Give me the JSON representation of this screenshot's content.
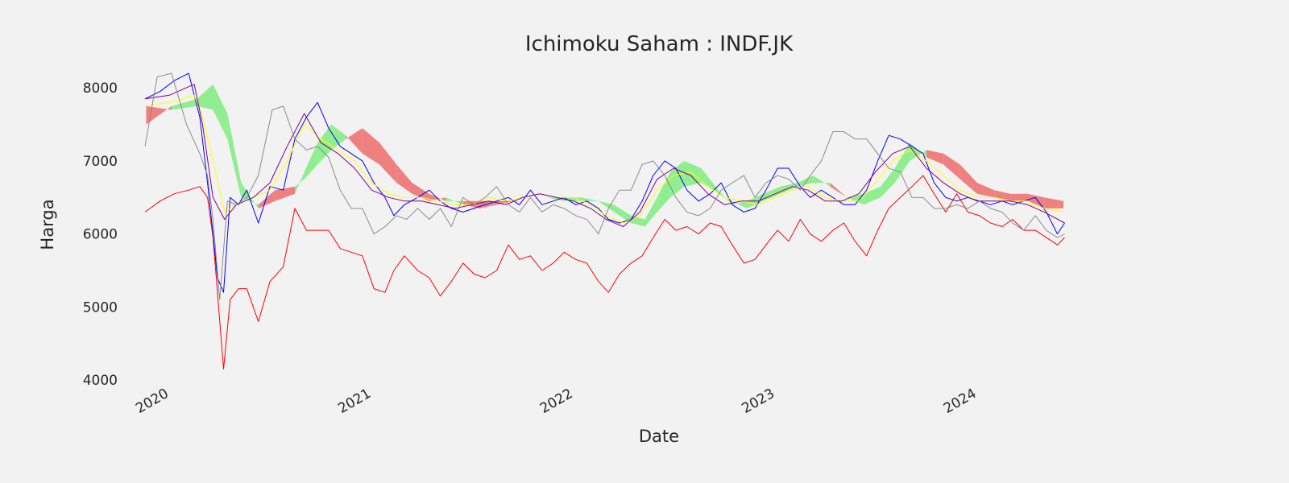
{
  "chart_data": {
    "type": "line",
    "title": "Ichimoku Saham : INDF.JK",
    "xlabel": "Date",
    "ylabel": "Harga",
    "xlim": [
      "2019-11-18",
      "2024-12-20"
    ],
    "ylim": [
      4000,
      8300
    ],
    "x_ticks": [
      "2020-01-01",
      "2021-01-01",
      "2022-01-01",
      "2023-01-01",
      "2024-01-01"
    ],
    "x_tick_labels": [
      "2020",
      "2021",
      "2022",
      "2023",
      "2024"
    ],
    "y_ticks": [
      4000,
      5000,
      6000,
      7000,
      8000
    ],
    "y_tick_labels": [
      "4000",
      "5000",
      "6000",
      "7000",
      "8000"
    ],
    "grid": false,
    "legend": false,
    "cloud": {
      "x": [
        "2019-11-20",
        "2020-01-05",
        "2020-02-20",
        "2020-03-20",
        "2020-04-15",
        "2020-05-10",
        "2020-06-10",
        "2020-07-10",
        "2020-08-15",
        "2020-09-01",
        "2020-09-25",
        "2020-10-20",
        "2020-11-15",
        "2020-12-15",
        "2021-01-15",
        "2021-02-15",
        "2021-03-15",
        "2021-04-15",
        "2021-05-15",
        "2021-06-15",
        "2021-07-15",
        "2021-08-15",
        "2021-09-15",
        "2021-10-15",
        "2021-11-15",
        "2021-12-15",
        "2022-01-15",
        "2022-02-15",
        "2022-03-15",
        "2022-04-15",
        "2022-05-10",
        "2022-06-01",
        "2022-06-25",
        "2022-07-20",
        "2022-08-20",
        "2022-09-20",
        "2022-10-15",
        "2022-11-10",
        "2022-12-10",
        "2023-01-10",
        "2023-02-10",
        "2023-03-10",
        "2023-04-10",
        "2023-05-10",
        "2023-06-10",
        "2023-07-10",
        "2023-08-05",
        "2023-09-01",
        "2023-10-01",
        "2023-11-01",
        "2023-12-01",
        "2024-01-01",
        "2024-02-01",
        "2024-03-01",
        "2024-04-01",
        "2024-05-01",
        "2024-06-05"
      ],
      "span_a": [
        7500,
        7750,
        7850,
        8050,
        7650,
        6700,
        6350,
        6450,
        6550,
        6850,
        7250,
        7500,
        7350,
        7100,
        6950,
        6700,
        6550,
        6450,
        6500,
        6400,
        6350,
        6400,
        6450,
        6450,
        6500,
        6500,
        6500,
        6450,
        6400,
        6250,
        6200,
        6500,
        6850,
        7000,
        6900,
        6600,
        6400,
        6450,
        6550,
        6650,
        6700,
        6800,
        6650,
        6500,
        6550,
        6650,
        6900,
        7250,
        7050,
        6950,
        6750,
        6550,
        6500,
        6450,
        6450,
        6350,
        6350
      ],
      "span_b": [
        7750,
        7700,
        7750,
        7700,
        7300,
        6500,
        6400,
        6600,
        6650,
        6750,
        6950,
        7150,
        7300,
        7450,
        7250,
        6950,
        6700,
        6550,
        6450,
        6450,
        6450,
        6450,
        6450,
        6450,
        6500,
        6450,
        6450,
        6450,
        6300,
        6150,
        6100,
        6300,
        6500,
        6650,
        6700,
        6550,
        6450,
        6350,
        6450,
        6550,
        6650,
        6700,
        6700,
        6500,
        6400,
        6500,
        6700,
        7000,
        7150,
        7100,
        6950,
        6700,
        6600,
        6550,
        6550,
        6500,
        6450
      ]
    },
    "series": [
      {
        "x": [
          "2019-11-18",
          "2019-12-15",
          "2020-01-10",
          "2020-02-05",
          "2020-02-25",
          "2020-03-10",
          "2020-03-20",
          "2020-03-28",
          "2020-04-08",
          "2020-04-20",
          "2020-05-05",
          "2020-05-20",
          "2020-06-10",
          "2020-07-01",
          "2020-07-25",
          "2020-08-15",
          "2020-09-05",
          "2020-09-25",
          "2020-10-15",
          "2020-11-05",
          "2020-11-25",
          "2020-12-15",
          "2021-01-05",
          "2021-01-25",
          "2021-02-10",
          "2021-03-01",
          "2021-03-25",
          "2021-04-15",
          "2021-05-05",
          "2021-05-25",
          "2021-06-15",
          "2021-07-05",
          "2021-07-25",
          "2021-08-15",
          "2021-09-05",
          "2021-09-25",
          "2021-10-15",
          "2021-11-05",
          "2021-11-25",
          "2021-12-15",
          "2022-01-05",
          "2022-01-25",
          "2022-02-15",
          "2022-03-05",
          "2022-03-25",
          "2022-04-15",
          "2022-05-05",
          "2022-05-25",
          "2022-06-15",
          "2022-07-05",
          "2022-07-25",
          "2022-08-15",
          "2022-09-05",
          "2022-09-25",
          "2022-10-15",
          "2022-11-05",
          "2022-11-25",
          "2022-12-15",
          "2023-01-05",
          "2023-01-25",
          "2023-02-15",
          "2023-03-05",
          "2023-03-25",
          "2023-04-15",
          "2023-05-05",
          "2023-05-25",
          "2023-06-15",
          "2023-07-05",
          "2023-07-25",
          "2023-08-15",
          "2023-09-05",
          "2023-09-25",
          "2023-10-15",
          "2023-11-05",
          "2023-11-25",
          "2023-12-15",
          "2024-01-05",
          "2024-01-25",
          "2024-02-15",
          "2024-03-05",
          "2024-03-25",
          "2024-04-15",
          "2024-05-05",
          "2024-05-25",
          "2024-06-07"
        ],
        "values": [
          6300,
          6450,
          6550,
          6600,
          6650,
          6500,
          5950,
          5200,
          4150,
          5100,
          5250,
          5250,
          4800,
          5350,
          5550,
          6350,
          6050,
          6050,
          6050,
          5800,
          5750,
          5700,
          5250,
          5200,
          5500,
          5700,
          5500,
          5400,
          5150,
          5350,
          5600,
          5450,
          5400,
          5500,
          5850,
          5650,
          5700,
          5500,
          5600,
          5750,
          5650,
          5600,
          5350,
          5200,
          5450,
          5600,
          5700,
          5950,
          6200,
          6050,
          6100,
          6000,
          6150,
          6100,
          5850,
          5600,
          5650,
          5850,
          6050,
          5900,
          6200,
          6000,
          5900,
          6050,
          6150,
          5900,
          5700,
          6050,
          6350,
          6500,
          6650,
          6800,
          6550,
          6300,
          6550,
          6300,
          6250,
          6150,
          6100,
          6200,
          6050,
          6050,
          5950,
          5850,
          5950
        ]
      },
      {
        "x": [
          "2019-11-18",
          "2019-12-15",
          "2020-01-10",
          "2020-02-05",
          "2020-02-25",
          "2020-03-10",
          "2020-03-20",
          "2020-03-28",
          "2020-04-08",
          "2020-04-20",
          "2020-05-05",
          "2020-05-20",
          "2020-06-10",
          "2020-07-01",
          "2020-07-25",
          "2020-08-15",
          "2020-09-05",
          "2020-09-25",
          "2020-10-15",
          "2020-11-05",
          "2020-11-25",
          "2020-12-15",
          "2021-01-05",
          "2021-01-25",
          "2021-02-10",
          "2021-03-01",
          "2021-03-25",
          "2021-04-15",
          "2021-05-05",
          "2021-05-25",
          "2021-06-15",
          "2021-07-05",
          "2021-07-25",
          "2021-08-15",
          "2021-09-05",
          "2021-09-25",
          "2021-10-15",
          "2021-11-05",
          "2021-11-25",
          "2021-12-15",
          "2022-01-05",
          "2022-01-25",
          "2022-02-15",
          "2022-03-05",
          "2022-03-25",
          "2022-04-15",
          "2022-05-05",
          "2022-05-25",
          "2022-06-15",
          "2022-07-05",
          "2022-07-25",
          "2022-08-15",
          "2022-09-05",
          "2022-09-25",
          "2022-10-15",
          "2022-11-05",
          "2022-11-25",
          "2022-12-15",
          "2023-01-05",
          "2023-01-25",
          "2023-02-15",
          "2023-03-05",
          "2023-03-25",
          "2023-04-15",
          "2023-05-05",
          "2023-05-25",
          "2023-06-15",
          "2023-07-05",
          "2023-07-25",
          "2023-08-15",
          "2023-09-05",
          "2023-09-25",
          "2023-10-15",
          "2023-11-05",
          "2023-11-25",
          "2023-12-15",
          "2024-01-05",
          "2024-01-25",
          "2024-02-15",
          "2024-03-05",
          "2024-03-25",
          "2024-04-15",
          "2024-05-05",
          "2024-05-25",
          "2024-06-07"
        ],
        "values": [
          7850,
          7950,
          8100,
          8200,
          7600,
          6700,
          6000,
          5400,
          5200,
          6500,
          6400,
          6600,
          6150,
          6650,
          6600,
          7300,
          7600,
          7800,
          7450,
          7200,
          7100,
          7000,
          6700,
          6500,
          6250,
          6400,
          6500,
          6600,
          6450,
          6350,
          6300,
          6350,
          6400,
          6450,
          6500,
          6400,
          6600,
          6400,
          6450,
          6500,
          6400,
          6450,
          6350,
          6200,
          6150,
          6200,
          6450,
          6800,
          7000,
          6900,
          6600,
          6450,
          6550,
          6700,
          6400,
          6300,
          6350,
          6600,
          6900,
          6900,
          6650,
          6500,
          6600,
          6500,
          6400,
          6400,
          6600,
          7000,
          7350,
          7300,
          7200,
          7100,
          6700,
          6500,
          6450,
          6500,
          6450,
          6400,
          6450,
          6400,
          6450,
          6500,
          6300,
          6000,
          6150
        ]
      },
      {
        "x": [
          "2019-11-18",
          "2020-01-01",
          "2020-02-15",
          "2020-03-01",
          "2020-03-20",
          "2020-04-10",
          "2020-05-01",
          "2020-06-01",
          "2020-07-01",
          "2020-08-01",
          "2020-09-01",
          "2020-10-01",
          "2020-11-01",
          "2020-12-01",
          "2021-01-01",
          "2021-02-01",
          "2021-03-01",
          "2021-04-01",
          "2021-05-01",
          "2021-06-01",
          "2021-07-01",
          "2021-08-01",
          "2021-09-01",
          "2021-10-01",
          "2021-11-01",
          "2021-12-01",
          "2022-01-01",
          "2022-02-01",
          "2022-03-01",
          "2022-04-01",
          "2022-05-01",
          "2022-06-01",
          "2022-07-01",
          "2022-08-01",
          "2022-09-01",
          "2022-10-01",
          "2022-11-01",
          "2022-12-01",
          "2023-01-01",
          "2023-02-01",
          "2023-03-01",
          "2023-04-01",
          "2023-05-01",
          "2023-06-01",
          "2023-07-01",
          "2023-08-01",
          "2023-09-01",
          "2023-10-01",
          "2023-11-01",
          "2023-12-01",
          "2024-01-01",
          "2024-02-01",
          "2024-03-01",
          "2024-04-01",
          "2024-05-01",
          "2024-06-07"
        ],
        "values": [
          7750,
          7800,
          7900,
          7600,
          7000,
          6300,
          6400,
          6500,
          6600,
          7000,
          7500,
          7300,
          7150,
          7000,
          6700,
          6550,
          6500,
          6500,
          6450,
          6400,
          6400,
          6500,
          6450,
          6500,
          6550,
          6500,
          6500,
          6400,
          6250,
          6150,
          6250,
          6600,
          6800,
          6850,
          6650,
          6500,
          6450,
          6400,
          6500,
          6600,
          6650,
          6500,
          6450,
          6450,
          6700,
          7000,
          7150,
          7000,
          6800,
          6600,
          6500,
          6500,
          6450,
          6450,
          6350,
          6300
        ]
      },
      {
        "x": [
          "2019-11-18",
          "2020-01-01",
          "2020-02-15",
          "2020-03-01",
          "2020-03-20",
          "2020-04-10",
          "2020-05-01",
          "2020-06-01",
          "2020-07-01",
          "2020-08-01",
          "2020-09-01",
          "2020-10-01",
          "2020-11-01",
          "2020-12-01",
          "2021-01-01",
          "2021-02-01",
          "2021-03-01",
          "2021-04-01",
          "2021-05-01",
          "2021-06-01",
          "2021-07-01",
          "2021-08-01",
          "2021-09-01",
          "2021-10-01",
          "2021-11-01",
          "2021-12-01",
          "2022-01-01",
          "2022-02-01",
          "2022-03-01",
          "2022-04-01",
          "2022-05-01",
          "2022-06-01",
          "2022-07-01",
          "2022-08-01",
          "2022-09-01",
          "2022-10-01",
          "2022-11-01",
          "2022-12-01",
          "2023-01-01",
          "2023-02-01",
          "2023-03-01",
          "2023-04-01",
          "2023-05-01",
          "2023-06-01",
          "2023-07-01",
          "2023-08-01",
          "2023-09-01",
          "2023-10-01",
          "2023-11-01",
          "2023-12-01",
          "2024-01-01",
          "2024-02-01",
          "2024-03-01",
          "2024-04-01",
          "2024-05-01",
          "2024-06-07"
        ],
        "values": [
          7850,
          7900,
          8050,
          7500,
          6500,
          6200,
          6400,
          6500,
          6700,
          7200,
          7650,
          7250,
          7100,
          6900,
          6600,
          6500,
          6450,
          6450,
          6400,
          6350,
          6400,
          6450,
          6400,
          6500,
          6550,
          6500,
          6450,
          6350,
          6200,
          6100,
          6300,
          6750,
          6900,
          6800,
          6550,
          6400,
          6450,
          6450,
          6550,
          6650,
          6600,
          6450,
          6450,
          6550,
          6850,
          7100,
          7200,
          6900,
          6700,
          6550,
          6450,
          6450,
          6450,
          6400,
          6300,
          6150
        ]
      },
      {
        "x": [
          "2019-11-18",
          "2019-12-10",
          "2020-01-05",
          "2020-02-01",
          "2020-02-25",
          "2020-03-10",
          "2020-03-20",
          "2020-04-01",
          "2020-04-15",
          "2020-05-01",
          "2020-05-20",
          "2020-06-10",
          "2020-07-05",
          "2020-07-25",
          "2020-08-15",
          "2020-09-05",
          "2020-09-25",
          "2020-10-15",
          "2020-11-05",
          "2020-11-25",
          "2020-12-15",
          "2021-01-05",
          "2021-01-25",
          "2021-02-15",
          "2021-03-05",
          "2021-03-25",
          "2021-04-15",
          "2021-05-05",
          "2021-05-25",
          "2021-06-15",
          "2021-07-05",
          "2021-07-25",
          "2021-08-15",
          "2021-09-05",
          "2021-09-25",
          "2021-10-15",
          "2021-11-05",
          "2021-11-25",
          "2021-12-15",
          "2022-01-05",
          "2022-01-25",
          "2022-02-15",
          "2022-03-05",
          "2022-03-25",
          "2022-04-15",
          "2022-05-05",
          "2022-05-25",
          "2022-06-15",
          "2022-07-05",
          "2022-07-25",
          "2022-08-15",
          "2022-09-05",
          "2022-09-25",
          "2022-10-15",
          "2022-11-05",
          "2022-11-25",
          "2022-12-15",
          "2023-01-05",
          "2023-01-25",
          "2023-02-15",
          "2023-03-05",
          "2023-03-25",
          "2023-04-15",
          "2023-05-05",
          "2023-05-25",
          "2023-06-15",
          "2023-07-05",
          "2023-07-25",
          "2023-08-15",
          "2023-09-05",
          "2023-09-25",
          "2023-10-15",
          "2023-11-05",
          "2023-11-25",
          "2023-12-15",
          "2024-01-05",
          "2024-01-25",
          "2024-02-15",
          "2024-03-05",
          "2024-03-25",
          "2024-04-15",
          "2024-05-05",
          "2024-05-25",
          "2024-06-07"
        ],
        "values": [
          7200,
          8150,
          8200,
          7500,
          7100,
          6800,
          6200,
          5100,
          6450,
          6400,
          6500,
          6800,
          7700,
          7750,
          7300,
          7150,
          7200,
          7050,
          6600,
          6350,
          6350,
          6000,
          6100,
          6250,
          6200,
          6350,
          6200,
          6350,
          6100,
          6500,
          6400,
          6500,
          6650,
          6400,
          6300,
          6500,
          6300,
          6400,
          6350,
          6250,
          6200,
          6000,
          6350,
          6600,
          6600,
          6950,
          7000,
          6800,
          6500,
          6300,
          6250,
          6350,
          6600,
          6700,
          6800,
          6500,
          6700,
          6800,
          6750,
          6600,
          6800,
          7000,
          7400,
          7400,
          7300,
          7300,
          7100,
          6900,
          6850,
          6500,
          6500,
          6350,
          6350,
          6400,
          6350,
          6450,
          6350,
          6300,
          6150,
          6050,
          6250,
          6050,
          5950,
          6000
        ]
      }
    ],
    "colors": {
      "background": "#f2f2f2",
      "text": "#262626",
      "cloud_up": "#90ee90",
      "cloud_down": "#f08080",
      "series": [
        "#ff0000",
        "#0000ff",
        "#ffff00",
        "#800080",
        "#808080"
      ]
    }
  }
}
